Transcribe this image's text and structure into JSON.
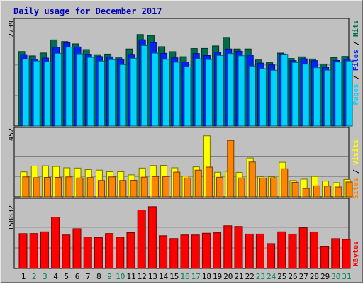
{
  "chart_data": {
    "type": "bar",
    "title": "Daily usage for December 2017",
    "categories": [
      "1",
      "2",
      "3",
      "4",
      "5",
      "6",
      "7",
      "8",
      "9",
      "10",
      "11",
      "12",
      "13",
      "14",
      "15",
      "16",
      "17",
      "18",
      "19",
      "20",
      "21",
      "22",
      "23",
      "24",
      "25",
      "26",
      "27",
      "28",
      "29",
      "30",
      "31"
    ],
    "weekend_days": [
      "2",
      "3",
      "9",
      "10",
      "16",
      "17",
      "23",
      "24",
      "30",
      "31"
    ],
    "panels": [
      {
        "id": "hits",
        "max_label": "2739",
        "max": 2739,
        "series": [
          {
            "name": "Hits",
            "color": "#006e4e",
            "values": [
              2230,
              2100,
              2185,
              2579,
              2528,
              2459,
              2288,
              2136,
              2153,
              2040,
              2306,
              2739,
              2713,
              2375,
              2226,
              2075,
              2319,
              2323,
              2397,
              2653,
              2306,
              2306,
              1977,
              1894,
              2183,
              2021,
              2071,
              2006,
              1856,
              2052,
              2083
            ]
          },
          {
            "name": "Files",
            "color": "#0024ff",
            "values": [
              2137,
              2001,
              2035,
              2358,
              2489,
              2367,
              2148,
              2079,
              2070,
              1997,
              2146,
              2582,
              2498,
              2175,
              2041,
              1919,
              2170,
              2109,
              2209,
              2306,
              2240,
              2125,
              1884,
              1829,
              2156,
              1957,
              2012,
              1956,
              1763,
              1961,
              2002
            ]
          },
          {
            "name": "Pages",
            "color": "#00d2ff",
            "values": [
              2001,
              1947,
              1921,
              2176,
              2362,
              2161,
              2055,
              1944,
              1987,
              1835,
              2028,
              2408,
              2182,
              1997,
              1910,
              1773,
              2014,
              1989,
              2113,
              2169,
              2103,
              1793,
              1719,
              1668,
              2147,
              1901,
              1852,
              1745,
              1672,
              1913,
              1946
            ]
          }
        ],
        "legend": [
          "Pages",
          "Files",
          "Hits"
        ]
      },
      {
        "id": "visits",
        "max_label": "452",
        "max": 452,
        "series": [
          {
            "name": "Visits",
            "color": "#ffff00",
            "values": [
              185,
              228,
              230,
              225,
              215,
              213,
              202,
              198,
              186,
              186,
              163,
              213,
              232,
              233,
              215,
              153,
              222,
              452,
              182,
              189,
              181,
              288,
              148,
              149,
              256,
              121,
              131,
              151,
              117,
              105,
              129
            ]
          },
          {
            "name": "Sites",
            "color": "#ff8400",
            "values": [
              148,
              142,
              144,
              144,
              148,
              140,
              143,
              122,
              148,
              122,
              123,
              146,
              150,
              150,
              183,
              140,
              198,
              220,
              145,
              418,
              140,
              258,
              139,
              141,
              208,
              108,
              62,
              82,
              80,
              73,
              110
            ]
          }
        ],
        "legend": [
          "Sites",
          "Visits"
        ]
      },
      {
        "id": "kbytes",
        "max_label": "158832",
        "max": 158832,
        "series": [
          {
            "name": "KBytes",
            "color": "#ff0000",
            "values": [
              89580,
              89867,
              94227,
              132087,
              86154,
              102208,
              80997,
              79850,
              89867,
              80410,
              92074,
              150398,
              158832,
              84130,
              76990,
              86148,
              86152,
              90680,
              91863,
              109734,
              107986,
              88560,
              88588,
              63924,
              94257,
              88523,
              104590,
              93986,
              55889,
              76718,
              74658
            ]
          }
        ],
        "legend": [
          "KBytes"
        ]
      }
    ],
    "colors": {
      "weekday_label": "#000000",
      "weekend_label": "#00805c",
      "title": "#0000b4"
    }
  }
}
